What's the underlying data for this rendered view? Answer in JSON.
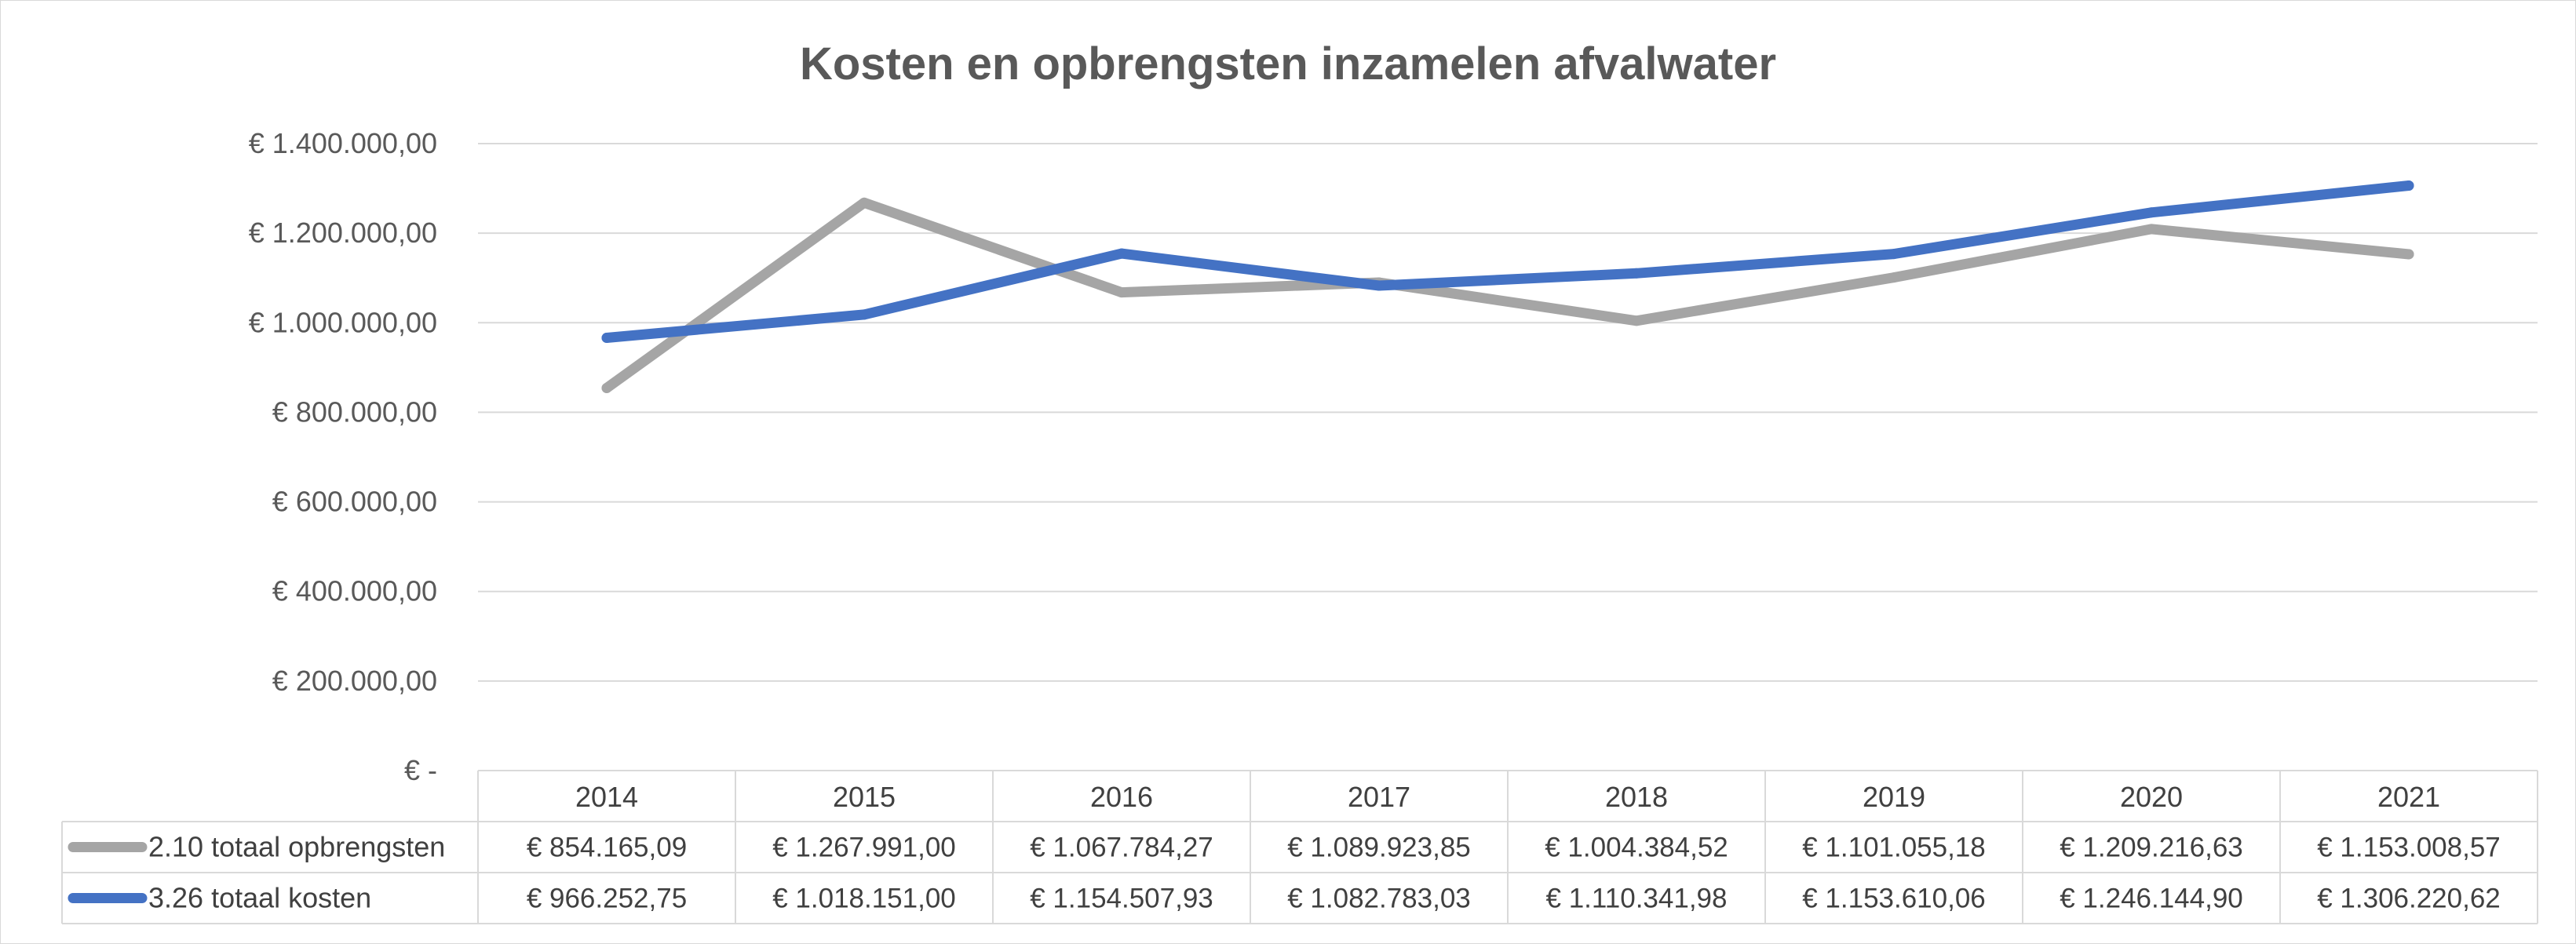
{
  "chart_data": {
    "type": "line",
    "title": "Kosten en opbrengsten inzamelen afvalwater",
    "xlabel": "",
    "ylabel": "",
    "categories": [
      "2014",
      "2015",
      "2016",
      "2017",
      "2018",
      "2019",
      "2020",
      "2021"
    ],
    "ylim": [
      0,
      1400000
    ],
    "y_ticks": [
      0,
      200000,
      400000,
      600000,
      800000,
      1000000,
      1200000,
      1400000
    ],
    "y_tick_labels": [
      "€ -",
      "€ 200.000,00",
      "€ 400.000,00",
      "€ 600.000,00",
      "€ 800.000,00",
      "€ 1.000.000,00",
      "€ 1.200.000,00",
      "€ 1.400.000,00"
    ],
    "grid": true,
    "legend": "data-table",
    "series": [
      {
        "name": "2.10 totaal opbrengsten",
        "color": "#a5a5a5",
        "values": [
          854165.09,
          1267991.0,
          1067784.27,
          1089923.85,
          1004384.52,
          1101055.18,
          1209216.63,
          1153008.57
        ],
        "value_labels": [
          "€ 854.165,09",
          "€ 1.267.991,00",
          "€ 1.067.784,27",
          "€ 1.089.923,85",
          "€ 1.004.384,52",
          "€ 1.101.055,18",
          "€ 1.209.216,63",
          "€ 1.153.008,57"
        ]
      },
      {
        "name": "3.26 totaal kosten",
        "color": "#4472c4",
        "values": [
          966252.75,
          1018151.0,
          1154507.93,
          1082783.03,
          1110341.98,
          1153610.06,
          1246144.9,
          1306220.62
        ],
        "value_labels": [
          "€ 966.252,75",
          "€ 1.018.151,00",
          "€ 1.154.507,93",
          "€ 1.082.783,03",
          "€ 1.110.341,98",
          "€ 1.153.610,06",
          "€ 1.246.144,90",
          "€ 1.306.220,62"
        ]
      }
    ]
  }
}
